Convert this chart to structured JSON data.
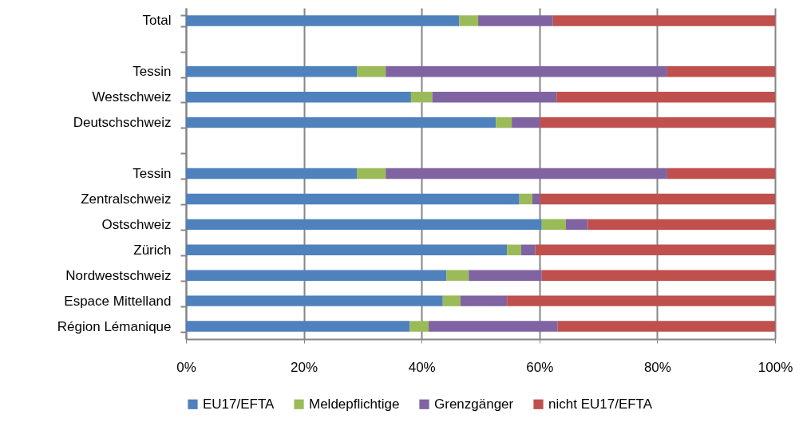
{
  "chart_data": {
    "type": "bar",
    "orientation": "horizontal",
    "stacked": true,
    "categories": [
      "Total",
      null,
      "Tessin",
      "Westschweiz",
      "Deutschschweiz",
      null,
      "Tessin",
      "Zentralschweiz",
      "Ostschweiz",
      "Zürich",
      "Nordwestschweiz",
      "Espace Mittelland",
      "Région Lémanique"
    ],
    "series": [
      {
        "name": "EU17/EFTA",
        "color": "#4f81bd",
        "values": [
          46.4,
          null,
          29.0,
          38.2,
          52.6,
          null,
          29.0,
          56.6,
          60.4,
          54.5,
          44.2,
          43.6,
          38.0
        ]
      },
      {
        "name": "Meldepflichtige",
        "color": "#9bbb59",
        "values": [
          3.2,
          null,
          4.9,
          3.6,
          2.7,
          null,
          4.9,
          2.2,
          4.1,
          2.4,
          3.8,
          3.0,
          3.2
        ]
      },
      {
        "name": "Grenzgänger",
        "color": "#8064a2",
        "values": [
          12.7,
          null,
          47.8,
          21.1,
          4.8,
          null,
          47.8,
          1.3,
          3.7,
          2.4,
          12.4,
          7.9,
          21.9
        ]
      },
      {
        "name": "nicht EU17/EFTA",
        "color": "#c0504d",
        "values": [
          37.7,
          null,
          18.3,
          37.1,
          39.9,
          null,
          18.3,
          39.9,
          31.8,
          40.7,
          39.6,
          45.5,
          36.9
        ]
      }
    ],
    "xlim": [
      0,
      100
    ],
    "xticks": [
      {
        "value": 0,
        "label": "0%"
      },
      {
        "value": 20,
        "label": "20%"
      },
      {
        "value": 40,
        "label": "40%"
      },
      {
        "value": 60,
        "label": "60%"
      },
      {
        "value": 80,
        "label": "80%"
      },
      {
        "value": 100,
        "label": "100%"
      }
    ],
    "grid": "x",
    "legend": "bottom"
  }
}
